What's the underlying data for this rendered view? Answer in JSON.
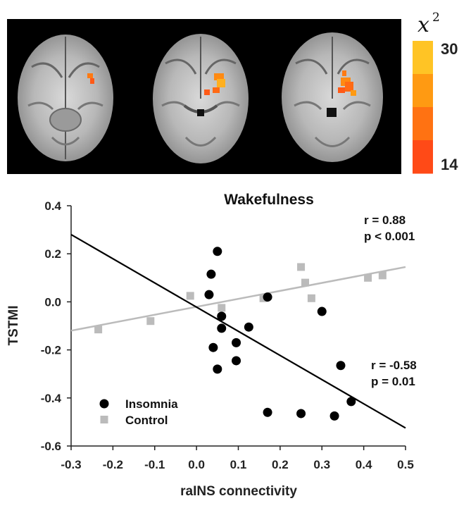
{
  "brain_panel": {
    "background": "#000000",
    "slices": 3
  },
  "colorbar": {
    "symbol": "x",
    "symbol_sup": "2",
    "max_label": "30",
    "min_label": "14",
    "colors": [
      "#FFC425",
      "#FF9A12",
      "#FF7212",
      "#FF4A17"
    ]
  },
  "chart_data": {
    "type": "scatter",
    "title": "Wakefulness",
    "xlabel": "raINS connectivity",
    "ylabel": "TSTMI",
    "xlim": [
      -0.3,
      0.5
    ],
    "ylim": [
      -0.6,
      0.4
    ],
    "xticks": [
      "-0.3",
      "-0.2",
      "-0.1",
      "0.0",
      "0.1",
      "0.2",
      "0.3",
      "0.4",
      "0.5"
    ],
    "yticks": [
      "0.4",
      "0.2",
      "0.0",
      "-0.2",
      "-0.4",
      "-0.6"
    ],
    "grid": false,
    "legend_position": "bottom-left",
    "series": [
      {
        "name": "Insomnia",
        "marker": "circle",
        "color": "#000000",
        "points": [
          [
            0.05,
            0.21
          ],
          [
            0.035,
            0.115
          ],
          [
            0.03,
            0.03
          ],
          [
            0.17,
            0.02
          ],
          [
            0.3,
            -0.04
          ],
          [
            0.06,
            -0.06
          ],
          [
            0.06,
            -0.11
          ],
          [
            0.125,
            -0.105
          ],
          [
            0.095,
            -0.17
          ],
          [
            0.04,
            -0.19
          ],
          [
            0.095,
            -0.245
          ],
          [
            0.05,
            -0.28
          ],
          [
            0.345,
            -0.265
          ],
          [
            0.37,
            -0.415
          ],
          [
            0.17,
            -0.46
          ],
          [
            0.25,
            -0.465
          ],
          [
            0.33,
            -0.475
          ]
        ],
        "fit": {
          "x": [
            -0.3,
            0.5
          ],
          "y": [
            0.28,
            -0.525
          ]
        },
        "annotation": {
          "r": "r = -0.58",
          "p": "p = 0.01"
        }
      },
      {
        "name": "Control",
        "marker": "square",
        "color": "#BBBBBB",
        "points": [
          [
            -0.235,
            -0.115
          ],
          [
            -0.11,
            -0.08
          ],
          [
            -0.015,
            0.025
          ],
          [
            0.06,
            -0.025
          ],
          [
            0.16,
            0.015
          ],
          [
            0.25,
            0.145
          ],
          [
            0.26,
            0.08
          ],
          [
            0.275,
            0.015
          ],
          [
            0.41,
            0.1
          ],
          [
            0.445,
            0.11
          ]
        ],
        "fit": {
          "x": [
            -0.3,
            0.5
          ],
          "y": [
            -0.12,
            0.145
          ]
        },
        "annotation": {
          "r": "r = 0.88",
          "p": "p < 0.001"
        }
      }
    ]
  }
}
